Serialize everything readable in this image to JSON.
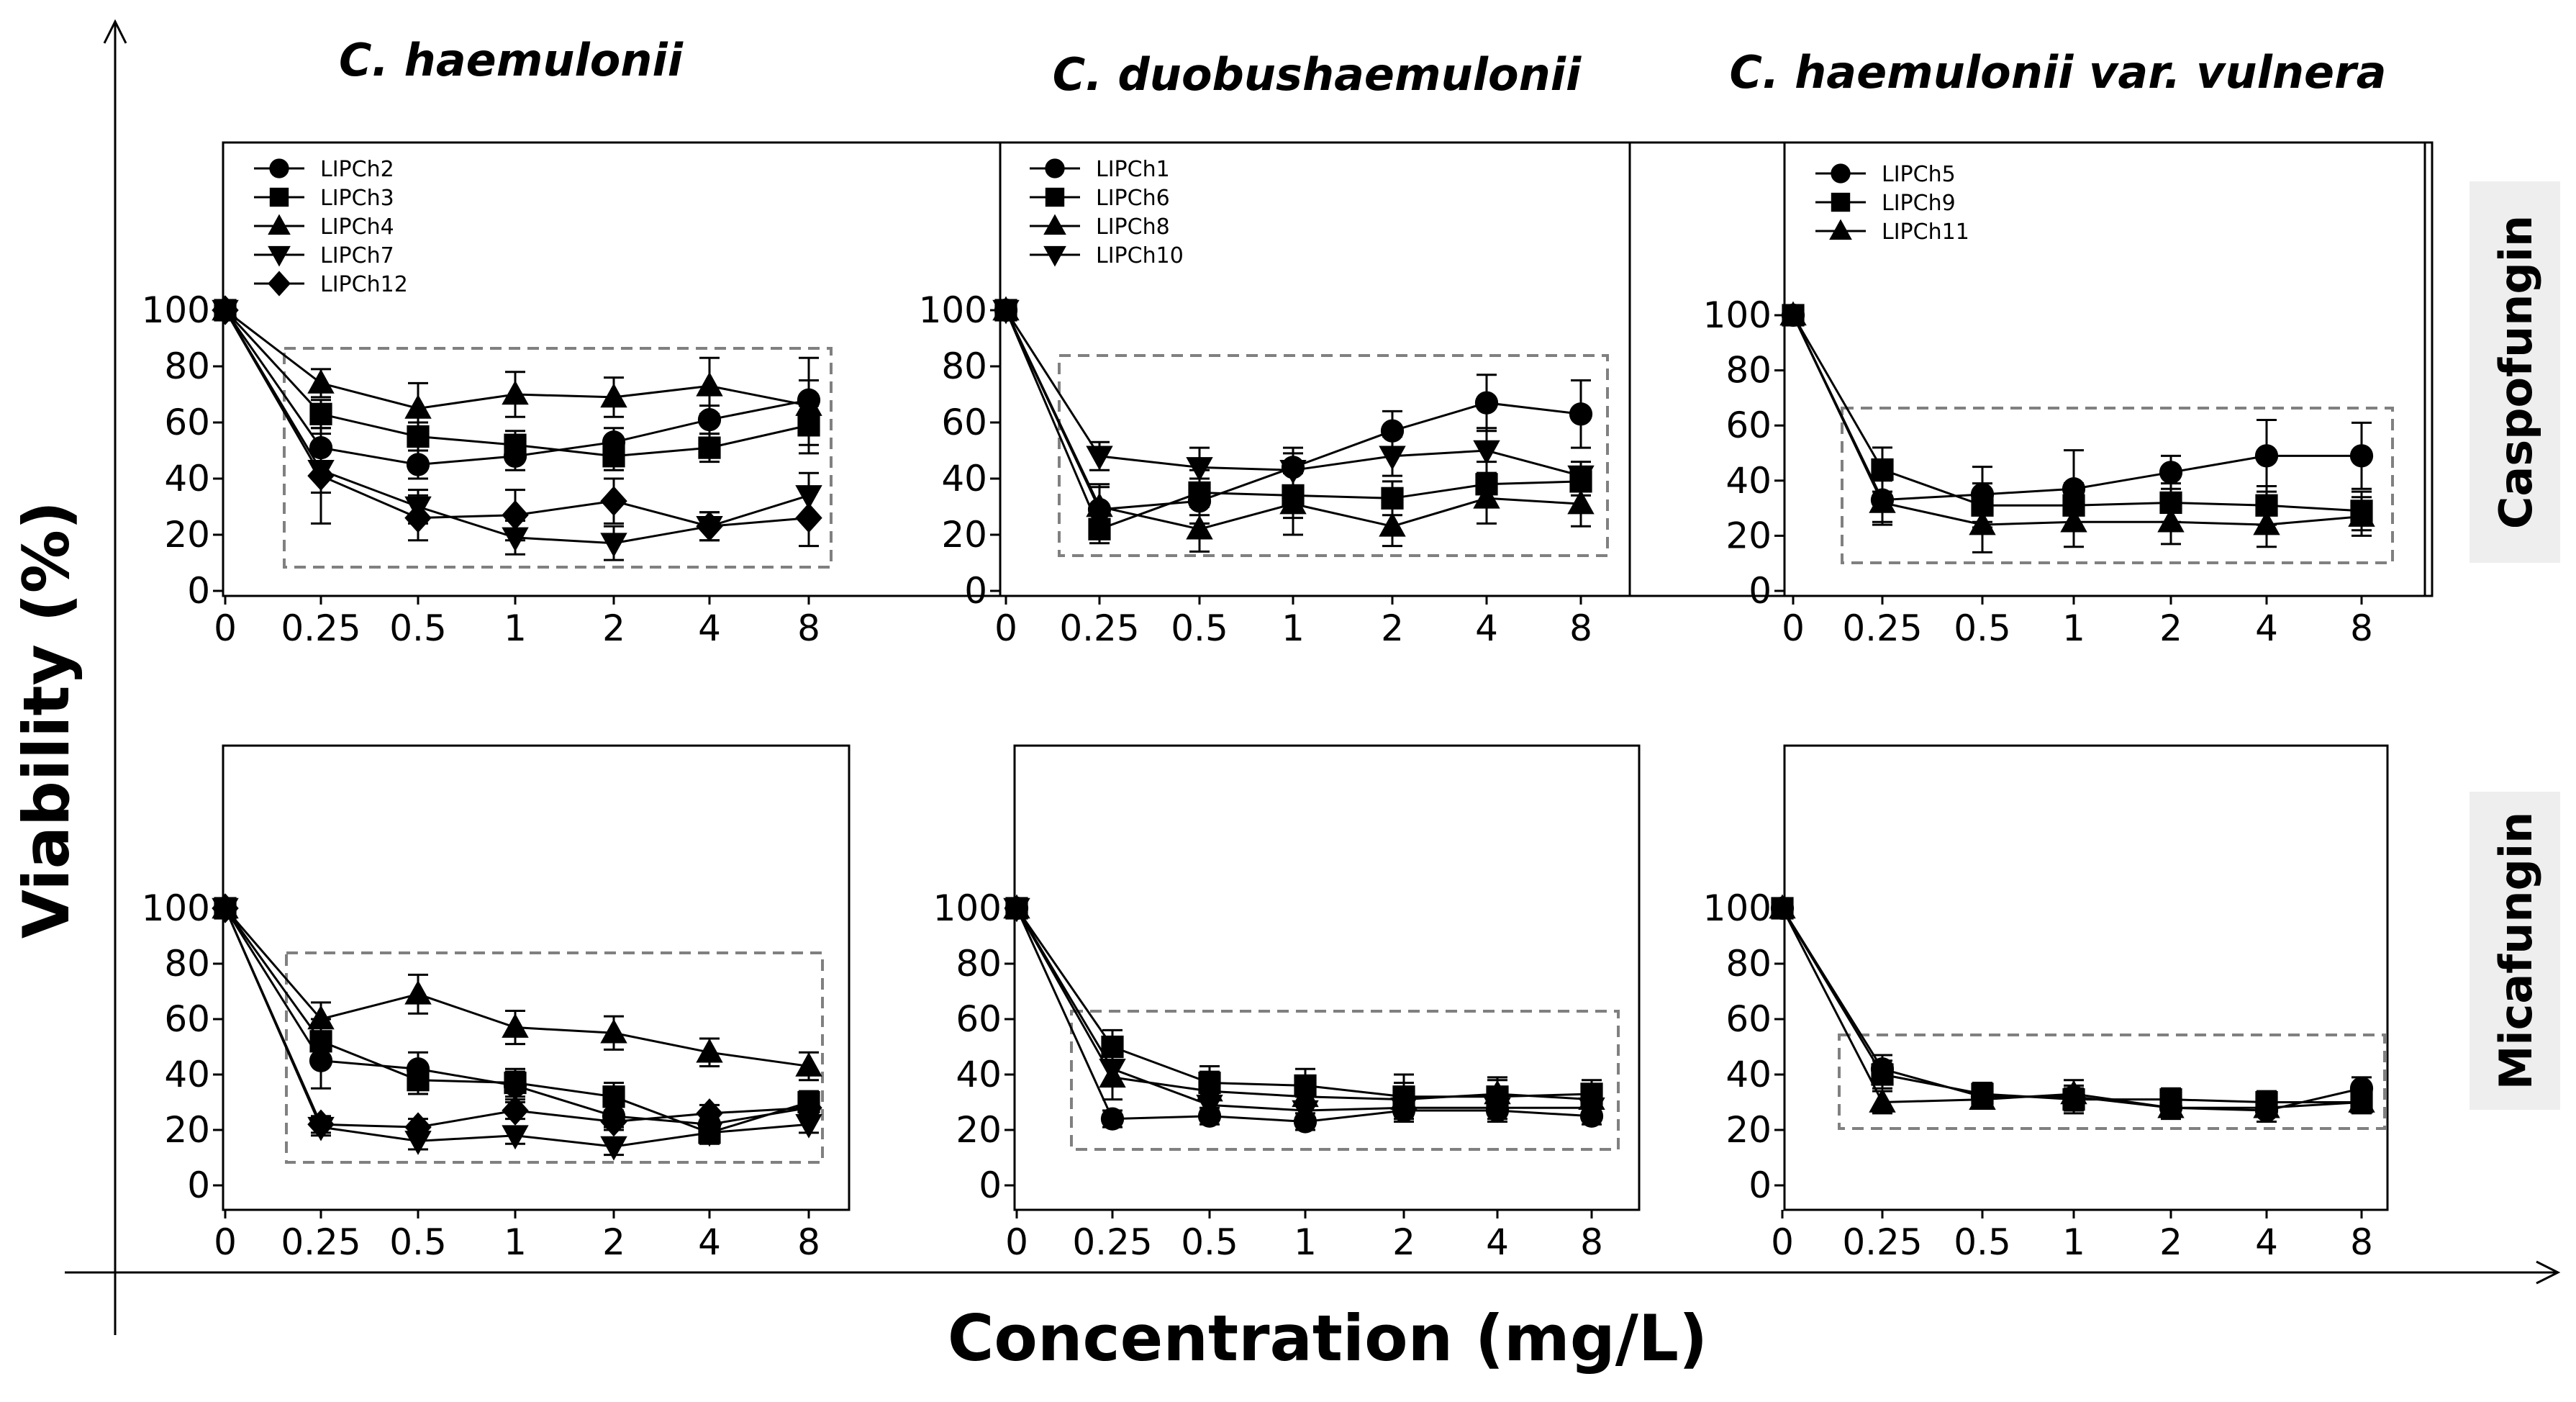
{
  "figure": {
    "xlabel": "Concentration (mg/L)",
    "ylabel": "Viability (%)",
    "column_titles": [
      {
        "prefix": "C. haemulonii",
        "suffix": ""
      },
      {
        "prefix": "C. duobushaemulonii",
        "suffix": ""
      },
      {
        "prefix": "C. haemulonii",
        "suffix": " var. vulnera"
      }
    ],
    "row_labels": [
      "Caspofungin",
      "Micafungin"
    ],
    "colors": {
      "line": "#000000",
      "box": "#808080",
      "row_label_bg": "#eeeeee"
    }
  },
  "chart_data": [
    {
      "type": "line",
      "row": "Caspofungin",
      "column": "C. haemulonii",
      "categories": [
        "0",
        "0.25",
        "0.5",
        "1",
        "2",
        "4",
        "8"
      ],
      "ylim": [
        0,
        100
      ],
      "yticks": [
        0,
        20,
        40,
        60,
        80,
        100
      ],
      "grid": false,
      "legend": "top-left",
      "series": [
        {
          "name": "LIPCh2",
          "marker": "circle",
          "values": [
            100,
            51,
            45,
            48,
            53,
            61,
            68
          ],
          "errors": [
            0,
            5,
            5,
            5,
            5,
            5,
            7
          ]
        },
        {
          "name": "LIPCh3",
          "marker": "square",
          "values": [
            100,
            63,
            55,
            52,
            48,
            51,
            59
          ],
          "errors": [
            0,
            5,
            5,
            5,
            5,
            5,
            7
          ]
        },
        {
          "name": "LIPCh4",
          "marker": "triangle-up",
          "values": [
            100,
            74,
            65,
            70,
            69,
            73,
            66
          ],
          "errors": [
            0,
            5,
            9,
            8,
            7,
            10,
            17
          ]
        },
        {
          "name": "LIPCh7",
          "marker": "triangle-down",
          "values": [
            100,
            43,
            30,
            19,
            17,
            23,
            34
          ],
          "errors": [
            0,
            8,
            6,
            6,
            6,
            5,
            8
          ]
        },
        {
          "name": "LIPCh12",
          "marker": "diamond",
          "values": [
            100,
            41,
            26,
            27,
            32,
            23,
            26
          ],
          "errors": [
            0,
            17,
            8,
            9,
            8,
            5,
            10
          ]
        }
      ]
    },
    {
      "type": "line",
      "row": "Caspofungin",
      "column": "C. duobushaemulonii",
      "categories": [
        "0",
        "0.25",
        "0.5",
        "1",
        "2",
        "4",
        "8"
      ],
      "ylim": [
        0,
        100
      ],
      "yticks": [
        0,
        20,
        40,
        60,
        80,
        100
      ],
      "grid": false,
      "legend": "top-left",
      "series": [
        {
          "name": "LIPCh1",
          "marker": "circle",
          "values": [
            100,
            29,
            32,
            44,
            57,
            67,
            63
          ],
          "errors": [
            0,
            8,
            8,
            7,
            7,
            10,
            12
          ]
        },
        {
          "name": "LIPCh6",
          "marker": "square",
          "values": [
            100,
            22,
            35,
            34,
            33,
            38,
            39
          ],
          "errors": [
            0,
            5,
            8,
            8,
            6,
            8,
            5
          ]
        },
        {
          "name": "LIPCh8",
          "marker": "triangle-up",
          "values": [
            100,
            30,
            22,
            31,
            23,
            33,
            31
          ],
          "errors": [
            0,
            8,
            8,
            11,
            7,
            9,
            8
          ]
        },
        {
          "name": "LIPCh10",
          "marker": "triangle-down",
          "values": [
            100,
            48,
            44,
            43,
            48,
            50,
            41
          ],
          "errors": [
            0,
            5,
            7,
            6,
            7,
            8,
            5
          ]
        }
      ]
    },
    {
      "type": "line",
      "row": "Caspofungin",
      "column": "C. haemulonii var. vulnera",
      "categories": [
        "0",
        "0.25",
        "0.5",
        "1",
        "2",
        "4",
        "8"
      ],
      "ylim": [
        0,
        100
      ],
      "yticks": [
        0,
        20,
        40,
        60,
        80,
        100
      ],
      "grid": false,
      "legend": "top-left",
      "series": [
        {
          "name": "LIPCh5",
          "marker": "circle",
          "values": [
            100,
            33,
            35,
            37,
            43,
            49,
            49
          ],
          "errors": [
            0,
            8,
            10,
            14,
            6,
            13,
            12
          ]
        },
        {
          "name": "LIPCh9",
          "marker": "square",
          "values": [
            100,
            44,
            31,
            31,
            32,
            31,
            29
          ],
          "errors": [
            0,
            8,
            8,
            8,
            7,
            7,
            7
          ]
        },
        {
          "name": "LIPCh11",
          "marker": "triangle-up",
          "values": [
            100,
            32,
            24,
            25,
            25,
            24,
            27
          ],
          "errors": [
            0,
            8,
            10,
            9,
            8,
            8,
            7
          ]
        }
      ]
    },
    {
      "type": "line",
      "row": "Micafungin",
      "column": "C. haemulonii",
      "categories": [
        "0",
        "0.25",
        "0.5",
        "1",
        "2",
        "4",
        "8"
      ],
      "ylim": [
        0,
        100
      ],
      "yticks": [
        0,
        20,
        40,
        60,
        80,
        100
      ],
      "grid": false,
      "series": [
        {
          "name": "LIPCh2",
          "marker": "circle",
          "values": [
            100,
            45,
            42,
            36,
            25,
            22,
            28
          ],
          "errors": [
            0,
            10,
            6,
            5,
            4,
            3,
            4
          ]
        },
        {
          "name": "LIPCh3",
          "marker": "square",
          "values": [
            100,
            52,
            38,
            37,
            32,
            19,
            30
          ],
          "errors": [
            0,
            8,
            5,
            5,
            5,
            4,
            4
          ]
        },
        {
          "name": "LIPCh4",
          "marker": "triangle-up",
          "values": [
            100,
            60,
            69,
            57,
            55,
            48,
            43
          ],
          "errors": [
            0,
            6,
            7,
            6,
            6,
            5,
            5
          ]
        },
        {
          "name": "LIPCh7",
          "marker": "triangle-down",
          "values": [
            100,
            21,
            16,
            18,
            14,
            19,
            22
          ],
          "errors": [
            0,
            3,
            3,
            3,
            3,
            3,
            3
          ]
        },
        {
          "name": "LIPCh12",
          "marker": "diamond",
          "values": [
            100,
            22,
            21,
            27,
            23,
            26,
            28
          ],
          "errors": [
            0,
            3,
            3,
            3,
            3,
            3,
            3
          ]
        }
      ]
    },
    {
      "type": "line",
      "row": "Micafungin",
      "column": "C. duobushaemulonii",
      "categories": [
        "0",
        "0.25",
        "0.5",
        "1",
        "2",
        "4",
        "8"
      ],
      "ylim": [
        0,
        100
      ],
      "yticks": [
        0,
        20,
        40,
        60,
        80,
        100
      ],
      "grid": false,
      "series": [
        {
          "name": "LIPCh1",
          "marker": "circle",
          "values": [
            100,
            24,
            25,
            23,
            27,
            27,
            25
          ],
          "errors": [
            0,
            3,
            3,
            3,
            3,
            3,
            3
          ]
        },
        {
          "name": "LIPCh6",
          "marker": "square",
          "values": [
            100,
            50,
            37,
            36,
            32,
            32,
            33
          ],
          "errors": [
            0,
            6,
            6,
            6,
            8,
            6,
            5
          ]
        },
        {
          "name": "LIPCh8",
          "marker": "triangle-up",
          "values": [
            100,
            39,
            34,
            32,
            31,
            33,
            31
          ],
          "errors": [
            0,
            8,
            7,
            6,
            6,
            6,
            5
          ]
        },
        {
          "name": "LIPCh10",
          "marker": "triangle-down",
          "values": [
            100,
            42,
            29,
            27,
            28,
            28,
            28
          ],
          "errors": [
            0,
            6,
            5,
            5,
            5,
            5,
            4
          ]
        }
      ]
    },
    {
      "type": "line",
      "row": "Micafungin",
      "column": "C. haemulonii var. vulnera",
      "categories": [
        "0",
        "0.25",
        "0.5",
        "1",
        "2",
        "4",
        "8"
      ],
      "ylim": [
        0,
        100
      ],
      "yticks": [
        0,
        20,
        40,
        60,
        80,
        100
      ],
      "grid": false,
      "series": [
        {
          "name": "LIPCh5",
          "marker": "circle",
          "values": [
            100,
            42,
            32,
            32,
            28,
            27,
            35
          ],
          "errors": [
            0,
            5,
            4,
            6,
            4,
            4,
            4
          ]
        },
        {
          "name": "LIPCh9",
          "marker": "square",
          "values": [
            100,
            40,
            33,
            31,
            31,
            30,
            30
          ],
          "errors": [
            0,
            5,
            4,
            4,
            4,
            4,
            4
          ]
        },
        {
          "name": "LIPCh11",
          "marker": "triangle-up",
          "values": [
            100,
            30,
            31,
            33,
            28,
            28,
            30
          ],
          "errors": [
            0,
            4,
            3,
            3,
            3,
            3,
            3
          ]
        }
      ]
    }
  ]
}
